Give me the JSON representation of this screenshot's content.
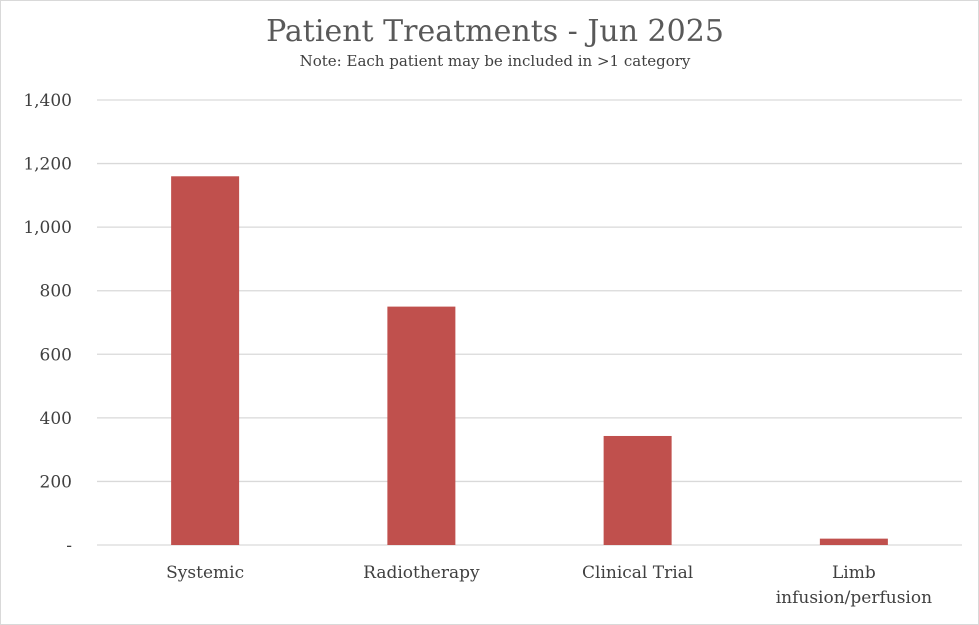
{
  "chart_data": {
    "type": "bar",
    "title": "Patient Treatments - Jun 2025",
    "subtitle": "Note:  Each patient may be included in >1 category",
    "categories": [
      [
        "Systemic"
      ],
      [
        "Radiotherapy"
      ],
      [
        "Clinical Trial"
      ],
      [
        "Limb",
        "infusion/perfusion"
      ]
    ],
    "values": [
      1160,
      750,
      343,
      20
    ],
    "ylim": [
      0,
      1400
    ],
    "yticks": [
      0,
      200,
      400,
      600,
      800,
      1000,
      1200,
      1400
    ],
    "ytick_labels": [
      "-",
      "200",
      "400",
      "600",
      "800",
      "1,000",
      "1,200",
      "1,400"
    ],
    "grid": true,
    "legend": "none",
    "bar_color": "#c0504d",
    "grid_color": "#d9d9d9"
  }
}
